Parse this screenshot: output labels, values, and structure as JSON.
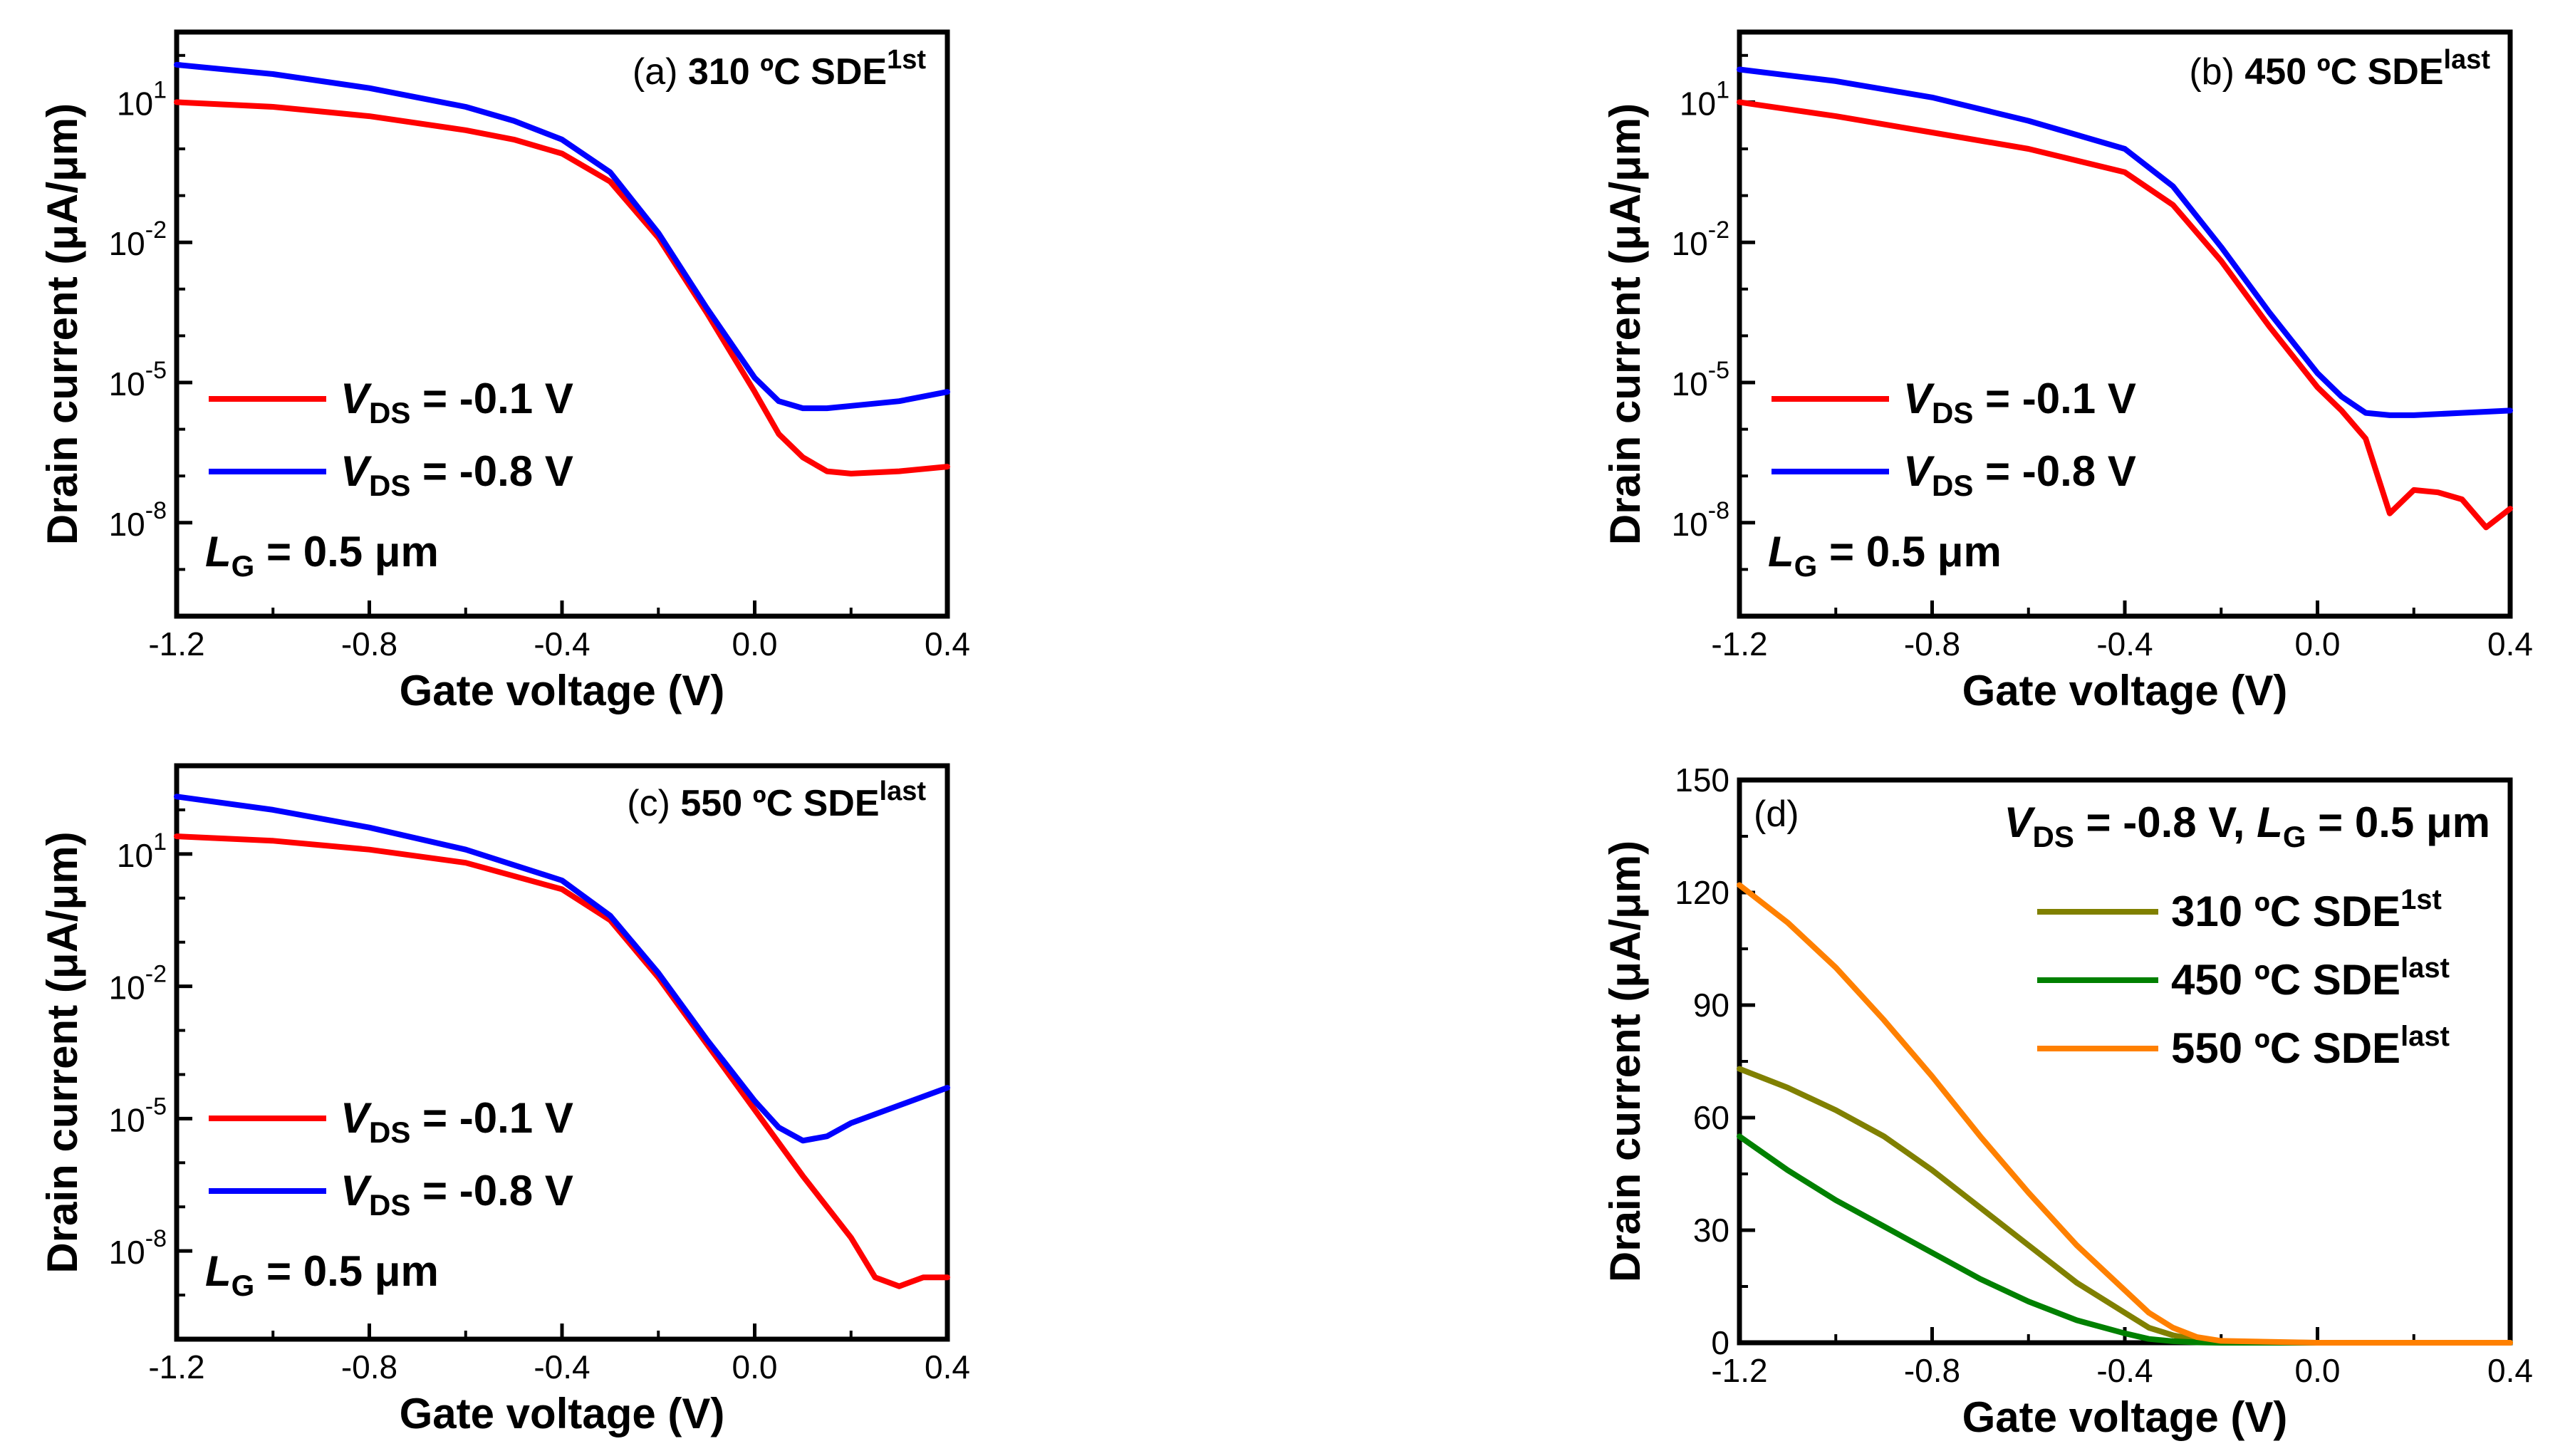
{
  "chart_data": [
    {
      "panel": "a",
      "type": "line",
      "y_scale": "log",
      "title": "(a) 310 ºC SDE1st",
      "title_parts": {
        "label": "(a)",
        "temp": "310",
        "unit": "ºC",
        "name": "SDE",
        "sup": "1st"
      },
      "xlabel": "Gate voltage (V)",
      "ylabel": "Drain current (μA/μm)",
      "xlim": [
        -1.2,
        0.4
      ],
      "ylim_log10": [
        -10,
        2.5
      ],
      "xticks": [
        "-1.2",
        "-0.8",
        "-0.4",
        "0.0",
        "0.4"
      ],
      "yticks": [
        {
          "base": "10",
          "exp": "1",
          "log": 1
        },
        {
          "base": "10",
          "exp": "-2",
          "log": -2
        },
        {
          "base": "10",
          "exp": "-5",
          "log": -5
        },
        {
          "base": "10",
          "exp": "-8",
          "log": -8
        }
      ],
      "legend": {
        "placement": "lower-left"
      },
      "annotation": {
        "var": "L",
        "sub": "G",
        "text": " = 0.5 μm"
      },
      "series": [
        {
          "name": "VDS = -0.1 V",
          "var": "V",
          "sub": "DS",
          "value_text": " = -0.1 V",
          "color": "#ff0000",
          "x": [
            -1.2,
            -1.0,
            -0.8,
            -0.6,
            -0.5,
            -0.4,
            -0.3,
            -0.2,
            -0.1,
            0.0,
            0.05,
            0.1,
            0.15,
            0.2,
            0.3,
            0.4
          ],
          "log10_y": [
            1.0,
            0.9,
            0.7,
            0.4,
            0.2,
            -0.1,
            -0.7,
            -1.9,
            -3.5,
            -5.2,
            -6.1,
            -6.6,
            -6.9,
            -6.95,
            -6.9,
            -6.8
          ]
        },
        {
          "name": "VDS = -0.8 V",
          "var": "V",
          "sub": "DS",
          "value_text": " = -0.8 V",
          "color": "#0000ff",
          "x": [
            -1.2,
            -1.0,
            -0.8,
            -0.6,
            -0.5,
            -0.4,
            -0.3,
            -0.2,
            -0.1,
            0.0,
            0.05,
            0.1,
            0.15,
            0.2,
            0.3,
            0.4
          ],
          "log10_y": [
            1.8,
            1.6,
            1.3,
            0.9,
            0.6,
            0.2,
            -0.5,
            -1.8,
            -3.4,
            -4.9,
            -5.4,
            -5.55,
            -5.55,
            -5.5,
            -5.4,
            -5.2
          ]
        }
      ]
    },
    {
      "panel": "b",
      "type": "line",
      "y_scale": "log",
      "title": "(b) 450 ºC SDElast",
      "title_parts": {
        "label": "(b)",
        "temp": "450",
        "unit": "ºC",
        "name": "SDE",
        "sup": "last"
      },
      "xlabel": "Gate voltage (V)",
      "ylabel": "Drain current (μA/μm)",
      "xlim": [
        -1.2,
        0.4
      ],
      "ylim_log10": [
        -10,
        2.5
      ],
      "xticks": [
        "-1.2",
        "-0.8",
        "-0.4",
        "0.0",
        "0.4"
      ],
      "yticks": [
        {
          "base": "10",
          "exp": "1",
          "log": 1
        },
        {
          "base": "10",
          "exp": "-2",
          "log": -2
        },
        {
          "base": "10",
          "exp": "-5",
          "log": -5
        },
        {
          "base": "10",
          "exp": "-8",
          "log": -8
        }
      ],
      "legend": {
        "placement": "lower-left"
      },
      "annotation": {
        "var": "L",
        "sub": "G",
        "text": " = 0.5 μm"
      },
      "series": [
        {
          "name": "VDS = -0.1 V",
          "var": "V",
          "sub": "DS",
          "value_text": " = -0.1 V",
          "color": "#ff0000",
          "x": [
            -1.2,
            -1.0,
            -0.8,
            -0.6,
            -0.4,
            -0.3,
            -0.2,
            -0.1,
            0.0,
            0.05,
            0.1,
            0.15,
            0.2,
            0.25,
            0.3,
            0.35,
            0.4
          ],
          "log10_y": [
            1.0,
            0.7,
            0.35,
            0.0,
            -0.5,
            -1.2,
            -2.4,
            -3.8,
            -5.1,
            -5.6,
            -6.2,
            -7.8,
            -7.3,
            -7.35,
            -7.5,
            -8.1,
            -7.7
          ]
        },
        {
          "name": "VDS = -0.8 V",
          "var": "V",
          "sub": "DS",
          "value_text": " = -0.8 V",
          "color": "#0000ff",
          "x": [
            -1.2,
            -1.0,
            -0.8,
            -0.6,
            -0.4,
            -0.3,
            -0.2,
            -0.1,
            0.0,
            0.05,
            0.1,
            0.15,
            0.2,
            0.3,
            0.4
          ],
          "log10_y": [
            1.7,
            1.45,
            1.1,
            0.6,
            0.0,
            -0.8,
            -2.1,
            -3.5,
            -4.8,
            -5.3,
            -5.65,
            -5.7,
            -5.7,
            -5.65,
            -5.6
          ]
        }
      ]
    },
    {
      "panel": "c",
      "type": "line",
      "y_scale": "log",
      "title": "(c) 550 ºC SDElast",
      "title_parts": {
        "label": "(c)",
        "temp": "550",
        "unit": "ºC",
        "name": "SDE",
        "sup": "last"
      },
      "xlabel": "Gate voltage (V)",
      "ylabel": "Drain current (μA/μm)",
      "xlim": [
        -1.2,
        0.4
      ],
      "ylim_log10": [
        -10,
        3
      ],
      "xticks": [
        "-1.2",
        "-0.8",
        "-0.4",
        "0.0",
        "0.4"
      ],
      "yticks": [
        {
          "base": "10",
          "exp": "1",
          "log": 1
        },
        {
          "base": "10",
          "exp": "-2",
          "log": -2
        },
        {
          "base": "10",
          "exp": "-5",
          "log": -5
        },
        {
          "base": "10",
          "exp": "-8",
          "log": -8
        }
      ],
      "legend": {
        "placement": "lower-left"
      },
      "annotation": {
        "var": "L",
        "sub": "G",
        "text": " = 0.5 μm"
      },
      "series": [
        {
          "name": "VDS = -0.1 V",
          "var": "V",
          "sub": "DS",
          "value_text": " = -0.1 V",
          "color": "#ff0000",
          "x": [
            -1.2,
            -1.0,
            -0.8,
            -0.6,
            -0.4,
            -0.3,
            -0.2,
            -0.1,
            0.0,
            0.1,
            0.2,
            0.25,
            0.3,
            0.35,
            0.4
          ],
          "log10_y": [
            1.4,
            1.3,
            1.1,
            0.8,
            0.2,
            -0.5,
            -1.8,
            -3.3,
            -4.8,
            -6.3,
            -7.7,
            -8.6,
            -8.8,
            -8.6,
            -8.6
          ]
        },
        {
          "name": "VDS = -0.8 V",
          "var": "V",
          "sub": "DS",
          "value_text": " = -0.8 V",
          "color": "#0000ff",
          "x": [
            -1.2,
            -1.0,
            -0.8,
            -0.6,
            -0.4,
            -0.3,
            -0.2,
            -0.1,
            0.0,
            0.05,
            0.1,
            0.15,
            0.2,
            0.3,
            0.4
          ],
          "log10_y": [
            2.3,
            2.0,
            1.6,
            1.1,
            0.4,
            -0.4,
            -1.7,
            -3.2,
            -4.6,
            -5.2,
            -5.5,
            -5.4,
            -5.1,
            -4.7,
            -4.3
          ]
        }
      ]
    },
    {
      "panel": "d",
      "type": "line",
      "y_scale": "linear",
      "title": "(d)",
      "title_parts": {
        "label": "(d)"
      },
      "condition": {
        "v_var": "V",
        "v_sub": "DS",
        "v_text": " = -0.8 V, ",
        "l_var": "L",
        "l_sub": "G",
        "l_text": " = 0.5 μm"
      },
      "xlabel": "Gate voltage (V)",
      "ylabel": "Drain current (μA/μm)",
      "xlim": [
        -1.2,
        0.4
      ],
      "ylim": [
        0,
        150
      ],
      "xticks": [
        "-1.2",
        "-0.8",
        "-0.4",
        "0.0",
        "0.4"
      ],
      "yticks": [
        "0",
        "30",
        "60",
        "90",
        "120",
        "150"
      ],
      "legend": {
        "placement": "top-right"
      },
      "series": [
        {
          "name": "310 ºC SDE1st",
          "temp_text": "310 ºC SDE",
          "sup": "1st",
          "color": "#808000",
          "x": [
            -1.2,
            -1.1,
            -1.0,
            -0.9,
            -0.8,
            -0.7,
            -0.6,
            -0.5,
            -0.4,
            -0.35,
            -0.3,
            -0.25,
            -0.2,
            0.0,
            0.2,
            0.4
          ],
          "y": [
            73,
            68,
            62,
            55,
            46,
            36,
            26,
            16,
            8,
            4,
            2,
            0.8,
            0.2,
            0,
            0,
            0
          ]
        },
        {
          "name": "450 ºC SDElast",
          "temp_text": "450 ºC SDE",
          "sup": "last",
          "color": "#008000",
          "x": [
            -1.2,
            -1.1,
            -1.0,
            -0.9,
            -0.8,
            -0.7,
            -0.6,
            -0.5,
            -0.4,
            -0.35,
            -0.3,
            -0.25,
            -0.2,
            0.0,
            0.2,
            0.4
          ],
          "y": [
            55,
            46,
            38,
            31,
            24,
            17,
            11,
            6,
            2.5,
            1,
            0.4,
            0.1,
            0,
            0,
            0,
            0
          ]
        },
        {
          "name": "550 ºC SDElast",
          "temp_text": "550 ºC SDE",
          "sup": "last",
          "color": "#ff8000",
          "x": [
            -1.2,
            -1.1,
            -1.0,
            -0.9,
            -0.8,
            -0.7,
            -0.6,
            -0.5,
            -0.4,
            -0.35,
            -0.3,
            -0.25,
            -0.2,
            0.0,
            0.2,
            0.4
          ],
          "y": [
            122,
            112,
            100,
            86,
            71,
            55,
            40,
            26,
            14,
            8,
            4,
            1.5,
            0.5,
            0,
            0,
            0
          ]
        }
      ]
    }
  ]
}
